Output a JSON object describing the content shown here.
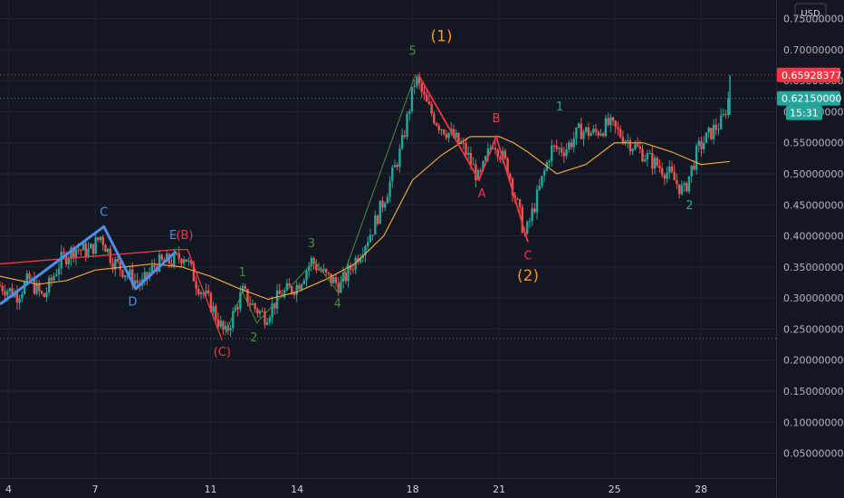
{
  "currency": "USD",
  "colors": {
    "background": "#131722",
    "grid": "#1f2433",
    "up": "#26a69a",
    "down": "#ef5350",
    "ma": "#f0a33c",
    "blue_wave": "#4f8ee8",
    "red_wave": "#f23645",
    "green_wave": "#4d8a3a",
    "orange_label": "#f7931a",
    "price_red": "#f23645",
    "price_green": "#26a69a"
  },
  "price_badges": [
    {
      "label": "0.65928377",
      "value": 0.65928377,
      "color": "#f23645",
      "line": "dotted"
    },
    {
      "label": "0.62150000",
      "value": 0.6215,
      "color": "#26a69a",
      "line": "dotted"
    }
  ],
  "countdown": "15:31",
  "chart_data": {
    "type": "candlestick",
    "y_ticks": [
      "0.75000000",
      "0.70000000",
      "0.65000000",
      "0.60000000",
      "0.55000000",
      "0.50000000",
      "0.45000000",
      "0.40000000",
      "0.35000000",
      "0.30000000",
      "0.25000000",
      "0.20000000",
      "0.15000000",
      "0.10000000",
      "0.05000000"
    ],
    "y_tick_values": [
      0.75,
      0.7,
      0.65,
      0.6,
      0.55,
      0.5,
      0.45,
      0.4,
      0.35,
      0.3,
      0.25,
      0.2,
      0.15,
      0.1,
      0.05
    ],
    "ylim": [
      0.01,
      0.78
    ],
    "xlim": [
      3.7,
      30.6
    ],
    "x_ticks": [
      {
        "label": "4",
        "x": 4
      },
      {
        "label": "7",
        "x": 7
      },
      {
        "label": "11",
        "x": 11
      },
      {
        "label": "14",
        "x": 14
      },
      {
        "label": "18",
        "x": 18
      },
      {
        "label": "21",
        "x": 21
      },
      {
        "label": "25",
        "x": 25
      },
      {
        "label": "28",
        "x": 28
      }
    ],
    "support_level": 0.235,
    "price_path": [
      [
        3.7,
        0.32
      ],
      [
        4.3,
        0.305
      ],
      [
        4.7,
        0.33
      ],
      [
        5.2,
        0.3
      ],
      [
        5.8,
        0.36
      ],
      [
        6.3,
        0.38
      ],
      [
        6.8,
        0.375
      ],
      [
        7.2,
        0.4
      ],
      [
        7.6,
        0.36
      ],
      [
        8.2,
        0.335
      ],
      [
        8.6,
        0.32
      ],
      [
        9.1,
        0.355
      ],
      [
        9.7,
        0.36
      ],
      [
        10.1,
        0.37
      ],
      [
        10.5,
        0.325
      ],
      [
        11.0,
        0.29
      ],
      [
        11.5,
        0.24
      ],
      [
        12.1,
        0.31
      ],
      [
        12.5,
        0.285
      ],
      [
        12.9,
        0.27
      ],
      [
        13.4,
        0.305
      ],
      [
        14.0,
        0.32
      ],
      [
        14.5,
        0.36
      ],
      [
        15.0,
        0.335
      ],
      [
        15.5,
        0.32
      ],
      [
        16.0,
        0.36
      ],
      [
        16.6,
        0.41
      ],
      [
        17.1,
        0.47
      ],
      [
        17.6,
        0.54
      ],
      [
        18.1,
        0.655
      ],
      [
        18.5,
        0.61
      ],
      [
        18.9,
        0.58
      ],
      [
        19.4,
        0.56
      ],
      [
        19.8,
        0.54
      ],
      [
        20.3,
        0.49
      ],
      [
        20.8,
        0.555
      ],
      [
        21.3,
        0.51
      ],
      [
        21.9,
        0.4
      ],
      [
        22.3,
        0.46
      ],
      [
        22.8,
        0.54
      ],
      [
        23.3,
        0.54
      ],
      [
        23.8,
        0.57
      ],
      [
        24.3,
        0.565
      ],
      [
        24.8,
        0.58
      ],
      [
        25.3,
        0.56
      ],
      [
        25.8,
        0.54
      ],
      [
        26.3,
        0.52
      ],
      [
        26.9,
        0.5
      ],
      [
        27.4,
        0.47
      ],
      [
        27.9,
        0.54
      ],
      [
        28.4,
        0.57
      ],
      [
        28.75,
        0.585
      ],
      [
        28.95,
        0.6215
      ]
    ],
    "spike": {
      "x": 29.0,
      "low": 0.595,
      "high": 0.659
    },
    "moving_average": [
      [
        3.7,
        0.335
      ],
      [
        5,
        0.322
      ],
      [
        6,
        0.328
      ],
      [
        7,
        0.345
      ],
      [
        8,
        0.35
      ],
      [
        9,
        0.355
      ],
      [
        10,
        0.35
      ],
      [
        11,
        0.335
      ],
      [
        12,
        0.315
      ],
      [
        13,
        0.298
      ],
      [
        14,
        0.31
      ],
      [
        15,
        0.33
      ],
      [
        16,
        0.355
      ],
      [
        17,
        0.4
      ],
      [
        17.5,
        0.445
      ],
      [
        18,
        0.49
      ],
      [
        19,
        0.53
      ],
      [
        20,
        0.56
      ],
      [
        21,
        0.56
      ],
      [
        21.5,
        0.55
      ],
      [
        22,
        0.535
      ],
      [
        23,
        0.5
      ],
      [
        24,
        0.515
      ],
      [
        25,
        0.55
      ],
      [
        26,
        0.55
      ],
      [
        27,
        0.535
      ],
      [
        28,
        0.515
      ],
      [
        29,
        0.52
      ]
    ],
    "waves": {
      "blue": [
        [
          3.7,
          0.29
        ],
        [
          7.3,
          0.415
        ],
        [
          8.4,
          0.315
        ],
        [
          9.8,
          0.375
        ]
      ],
      "red_triangle": [
        [
          3.7,
          0.355
        ],
        [
          9.8,
          0.378
        ],
        [
          10.2,
          0.378
        ],
        [
          11.4,
          0.232
        ]
      ],
      "red_abc": [
        [
          18.2,
          0.66
        ],
        [
          20.3,
          0.49
        ],
        [
          20.9,
          0.56
        ],
        [
          22.0,
          0.39
        ]
      ],
      "green_impulse": [
        [
          11.5,
          0.24
        ],
        [
          12.1,
          0.31
        ],
        [
          12.6,
          0.26
        ],
        [
          14.6,
          0.36
        ],
        [
          15.4,
          0.31
        ],
        [
          18.1,
          0.66
        ]
      ]
    },
    "labels": [
      {
        "text": "C",
        "x": 7.3,
        "y": 0.432,
        "color": "#4f8ee8",
        "size": "normal"
      },
      {
        "text": "D",
        "x": 8.3,
        "y": 0.288,
        "color": "#4f8ee8",
        "size": "normal"
      },
      {
        "text": "E",
        "x": 9.7,
        "y": 0.395,
        "color": "#4f8ee8",
        "size": "normal"
      },
      {
        "text": "(B)",
        "x": 10.1,
        "y": 0.395,
        "color": "#f23645",
        "size": "normal"
      },
      {
        "text": "(C)",
        "x": 11.4,
        "y": 0.207,
        "color": "#f23645",
        "size": "normal"
      },
      {
        "text": "1",
        "x": 12.1,
        "y": 0.335,
        "color": "#4d8a3a",
        "size": "normal"
      },
      {
        "text": "2",
        "x": 12.5,
        "y": 0.23,
        "color": "#4d8a3a",
        "size": "normal"
      },
      {
        "text": "3",
        "x": 14.5,
        "y": 0.382,
        "color": "#4d8a3a",
        "size": "normal"
      },
      {
        "text": "4",
        "x": 15.4,
        "y": 0.285,
        "color": "#4d8a3a",
        "size": "normal"
      },
      {
        "text": "5",
        "x": 18.0,
        "y": 0.692,
        "color": "#4d8a3a",
        "size": "normal"
      },
      {
        "text": "(1)",
        "x": 19.0,
        "y": 0.714,
        "color": "#f7931a",
        "size": "big"
      },
      {
        "text": "B",
        "x": 20.9,
        "y": 0.583,
        "color": "#f23645",
        "size": "normal"
      },
      {
        "text": "A",
        "x": 20.4,
        "y": 0.462,
        "color": "#f23645",
        "size": "normal"
      },
      {
        "text": "C",
        "x": 22.0,
        "y": 0.362,
        "color": "#f23645",
        "size": "normal"
      },
      {
        "text": "(2)",
        "x": 22.0,
        "y": 0.328,
        "color": "#f7931a",
        "size": "big"
      },
      {
        "text": "1",
        "x": 23.1,
        "y": 0.602,
        "color": "#26a69a",
        "size": "normal"
      },
      {
        "text": "2",
        "x": 27.6,
        "y": 0.443,
        "color": "#26a69a",
        "size": "normal"
      }
    ]
  }
}
